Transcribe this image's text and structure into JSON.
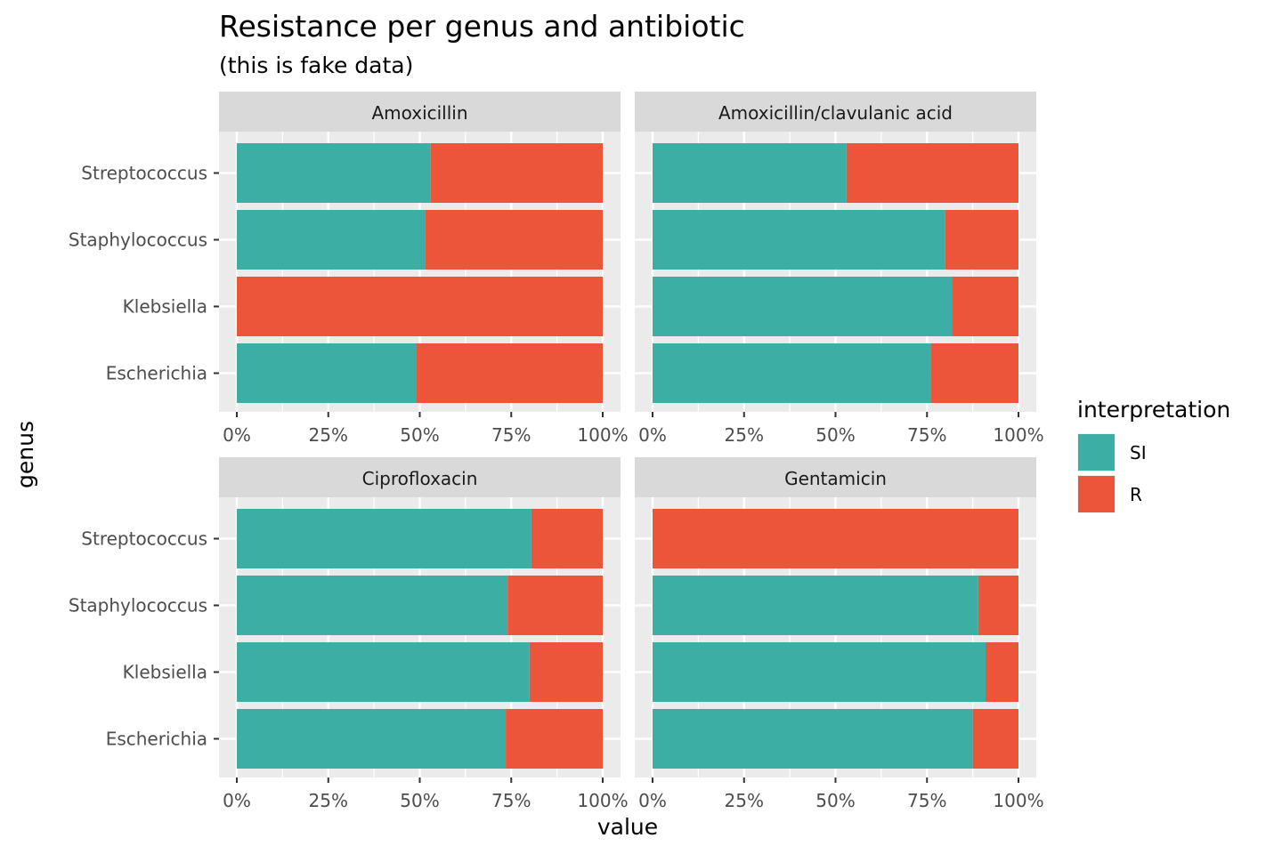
{
  "chart_data": {
    "type": "bar",
    "orientation": "horizontal",
    "stacked": true,
    "title": "Resistance per genus and antibiotic",
    "subtitle": "(this is fake data)",
    "xlabel": "value",
    "ylabel": "genus",
    "xlim": [
      0,
      1
    ],
    "x_ticks": [
      "0%",
      "25%",
      "50%",
      "75%",
      "100%"
    ],
    "categories": [
      "Streptococcus",
      "Staphylococcus",
      "Klebsiella",
      "Escherichia"
    ],
    "legend": {
      "title": "interpretation",
      "position": "right",
      "entries": [
        {
          "name": "SI",
          "color": "#3caea3"
        },
        {
          "name": "R",
          "color": "#ed553b"
        }
      ]
    },
    "grid": true,
    "facets": [
      {
        "label": "Amoxicillin",
        "series": [
          {
            "name": "SI",
            "values": [
              0.53,
              0.515,
              0.0,
              0.49
            ]
          },
          {
            "name": "R",
            "values": [
              0.47,
              0.485,
              1.0,
              0.51
            ]
          }
        ]
      },
      {
        "label": "Amoxicillin/clavulanic acid",
        "series": [
          {
            "name": "SI",
            "values": [
              0.53,
              0.8,
              0.82,
              0.76
            ]
          },
          {
            "name": "R",
            "values": [
              0.47,
              0.2,
              0.18,
              0.24
            ]
          }
        ]
      },
      {
        "label": "Ciprofloxacin",
        "series": [
          {
            "name": "SI",
            "values": [
              0.805,
              0.74,
              0.8,
              0.735
            ]
          },
          {
            "name": "R",
            "values": [
              0.195,
              0.26,
              0.2,
              0.265
            ]
          }
        ]
      },
      {
        "label": "Gentamicin",
        "series": [
          {
            "name": "SI",
            "values": [
              0.0,
              0.89,
              0.91,
              0.875
            ]
          },
          {
            "name": "R",
            "values": [
              1.0,
              0.11,
              0.09,
              0.125
            ]
          }
        ]
      }
    ]
  }
}
